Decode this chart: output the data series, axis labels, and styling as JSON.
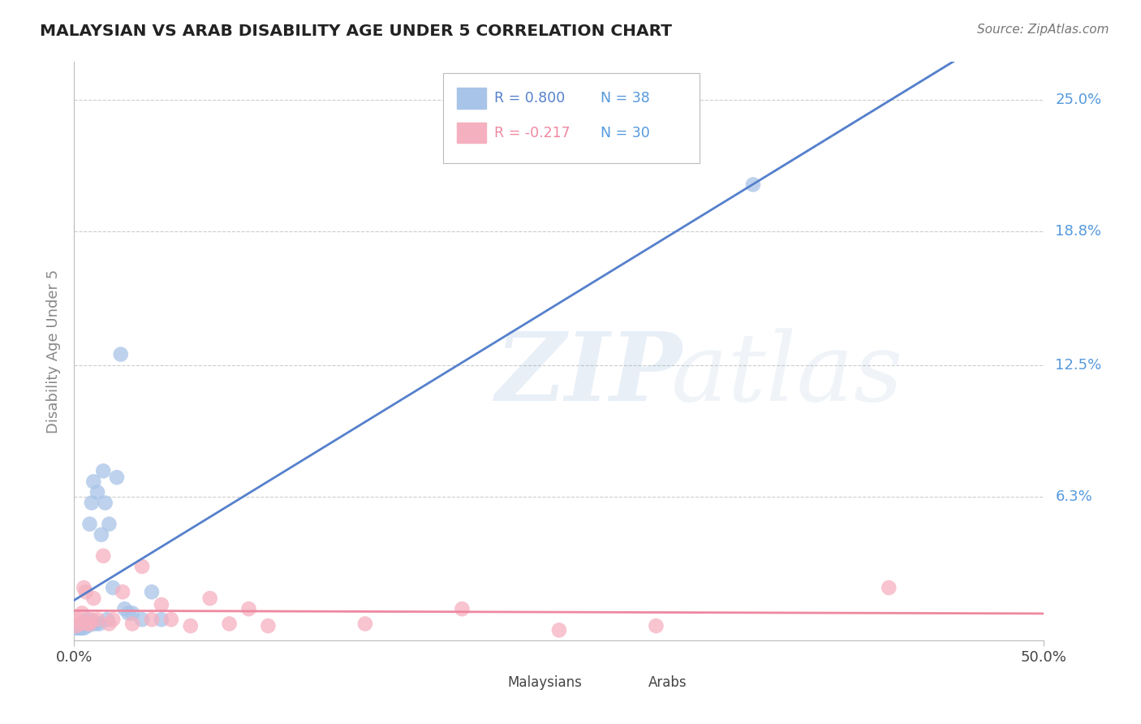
{
  "title": "MALAYSIAN VS ARAB DISABILITY AGE UNDER 5 CORRELATION CHART",
  "source": "Source: ZipAtlas.com",
  "ylabel": "Disability Age Under 5",
  "ytick_values": [
    0.0,
    0.063,
    0.125,
    0.188,
    0.25
  ],
  "ytick_labels": [
    "",
    "6.3%",
    "12.5%",
    "18.8%",
    "25.0%"
  ],
  "xlim": [
    0.0,
    0.5
  ],
  "ylim": [
    -0.005,
    0.268
  ],
  "malaysians_R": "0.800",
  "malaysians_N": "38",
  "arabs_R": "-0.217",
  "arabs_N": "30",
  "malaysian_color": "#A8C4E8",
  "arab_color": "#F5B0C0",
  "malaysian_line_color": "#5580CC",
  "arab_line_color": "#EE88A0",
  "watermark_zip": "ZIP",
  "watermark_atlas": "atlas",
  "background_color": "#FFFFFF",
  "grid_color": "#CCCCCC",
  "title_color": "#222222",
  "axis_label_color": "#888888",
  "right_tick_color": "#5599DD",
  "source_color": "#777777",
  "malaysian_x": [
    0.001,
    0.002,
    0.002,
    0.003,
    0.003,
    0.004,
    0.004,
    0.005,
    0.005,
    0.005,
    0.006,
    0.006,
    0.007,
    0.007,
    0.008,
    0.008,
    0.009,
    0.009,
    0.01,
    0.01,
    0.011,
    0.012,
    0.013,
    0.014,
    0.015,
    0.016,
    0.017,
    0.018,
    0.02,
    0.022,
    0.024,
    0.026,
    0.028,
    0.03,
    0.035,
    0.04,
    0.045,
    0.35
  ],
  "malaysian_y": [
    0.001,
    0.001,
    0.002,
    0.001,
    0.002,
    0.001,
    0.003,
    0.001,
    0.002,
    0.003,
    0.002,
    0.004,
    0.002,
    0.005,
    0.003,
    0.05,
    0.003,
    0.06,
    0.004,
    0.07,
    0.003,
    0.065,
    0.003,
    0.045,
    0.075,
    0.06,
    0.005,
    0.05,
    0.02,
    0.072,
    0.13,
    0.01,
    0.008,
    0.008,
    0.005,
    0.018,
    0.005,
    0.21
  ],
  "arab_x": [
    0.001,
    0.002,
    0.003,
    0.004,
    0.005,
    0.006,
    0.007,
    0.008,
    0.009,
    0.01,
    0.012,
    0.015,
    0.018,
    0.02,
    0.025,
    0.03,
    0.035,
    0.04,
    0.045,
    0.05,
    0.06,
    0.07,
    0.08,
    0.09,
    0.1,
    0.15,
    0.2,
    0.25,
    0.3,
    0.42
  ],
  "arab_y": [
    0.002,
    0.005,
    0.003,
    0.008,
    0.02,
    0.018,
    0.003,
    0.003,
    0.005,
    0.015,
    0.005,
    0.035,
    0.003,
    0.005,
    0.018,
    0.003,
    0.03,
    0.005,
    0.012,
    0.005,
    0.002,
    0.015,
    0.003,
    0.01,
    0.002,
    0.003,
    0.01,
    0.0,
    0.002,
    0.02
  ]
}
